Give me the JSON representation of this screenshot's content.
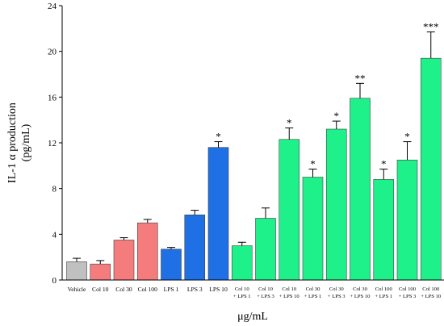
{
  "chart_data": {
    "type": "bar",
    "ylabel_line1": "IL-1 α production",
    "ylabel_line2": "(pg/mL)",
    "xlabel": "μg/mL",
    "ylim": [
      0,
      24
    ],
    "yticks": [
      "0",
      "4",
      "8",
      "12",
      "16",
      "20",
      "24"
    ],
    "grid": false,
    "colors": {
      "vehicle": "#c0c0c0",
      "col": "#f47c7c",
      "lps": "#1f6fe5",
      "combo": "#1ef08a",
      "outline": "#444444"
    },
    "categories": [
      {
        "line1": "Vehicle",
        "line2": "",
        "value": 1.6,
        "error": 0.3,
        "group": "vehicle",
        "sig": ""
      },
      {
        "line1": "Col 10",
        "line2": "",
        "value": 1.4,
        "error": 0.3,
        "group": "col",
        "sig": ""
      },
      {
        "line1": "Col 30",
        "line2": "",
        "value": 3.5,
        "error": 0.2,
        "group": "col",
        "sig": ""
      },
      {
        "line1": "Col 100",
        "line2": "",
        "value": 5.0,
        "error": 0.3,
        "group": "col",
        "sig": ""
      },
      {
        "line1": "LPS 1",
        "line2": "",
        "value": 2.7,
        "error": 0.15,
        "group": "lps",
        "sig": ""
      },
      {
        "line1": "LPS 3",
        "line2": "",
        "value": 5.7,
        "error": 0.4,
        "group": "lps",
        "sig": ""
      },
      {
        "line1": "LPS 10",
        "line2": "",
        "value": 11.6,
        "error": 0.5,
        "group": "lps",
        "sig": "*"
      },
      {
        "line1": "Col 10",
        "line2": "+ LPS 1",
        "value": 3.0,
        "error": 0.3,
        "group": "combo",
        "sig": ""
      },
      {
        "line1": "Col 10",
        "line2": "+ LPS 3",
        "value": 5.4,
        "error": 0.9,
        "group": "combo",
        "sig": ""
      },
      {
        "line1": "Col 10",
        "line2": "+ LPS 10",
        "value": 12.3,
        "error": 1.0,
        "group": "combo",
        "sig": "*"
      },
      {
        "line1": "Col 30",
        "line2": "+ LPS 1",
        "value": 9.0,
        "error": 0.7,
        "group": "combo",
        "sig": "*"
      },
      {
        "line1": "Col 30",
        "line2": "+ LPS 3",
        "value": 13.2,
        "error": 0.7,
        "group": "combo",
        "sig": "*"
      },
      {
        "line1": "Col 30",
        "line2": "+ LPS 10",
        "value": 15.9,
        "error": 1.3,
        "group": "combo",
        "sig": "**"
      },
      {
        "line1": "Col 100",
        "line2": "+ LPS 1",
        "value": 8.8,
        "error": 0.9,
        "group": "combo",
        "sig": "*"
      },
      {
        "line1": "Col 100",
        "line2": "+ LPS 3",
        "value": 10.5,
        "error": 1.6,
        "group": "combo",
        "sig": "*"
      },
      {
        "line1": "Col 100",
        "line2": "+ LPS 10",
        "value": 19.4,
        "error": 2.3,
        "group": "combo",
        "sig": "***"
      }
    ]
  }
}
